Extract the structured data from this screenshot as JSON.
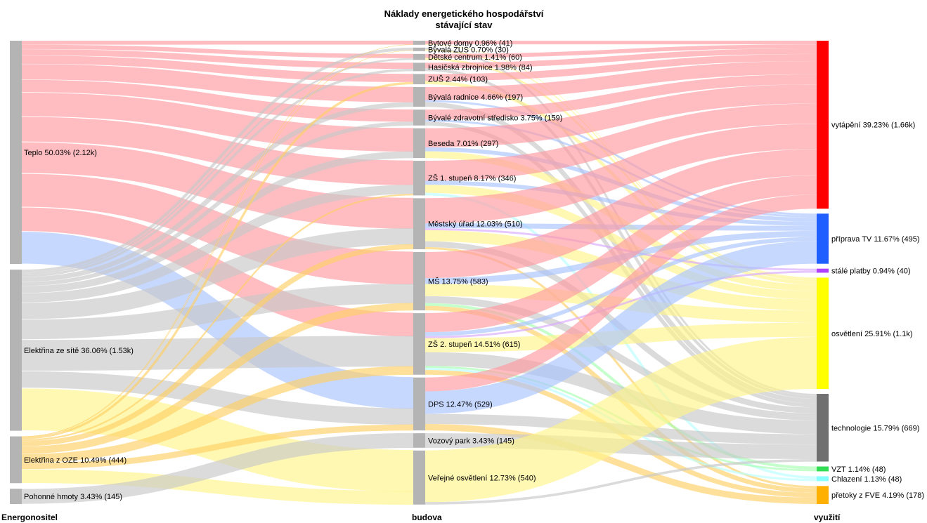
{
  "colors": {
    "teplo": "#ff9aa2",
    "site": "#c8c8c8",
    "tv": "#a9c3ff",
    "osvetleni": "#fff58a",
    "oze": "#ffcf66",
    "chlazeni": "#b8ffff",
    "vzt": "#a6ffb0",
    "stale": "#d8a8ff",
    "node_grey": "#b4b4b4",
    "vytapeni": "#ff0000",
    "priprava_tv": "#1f5fff",
    "stale_platby": "#b040ff",
    "osvetleni_node": "#ffff00",
    "technologie": "#707070",
    "vzt_node": "#33dd55",
    "chlazeni_node": "#88ffff",
    "pretoky": "#ffb000"
  },
  "chart_data": {
    "type": "sankey",
    "title": [
      "Náklady energetického hospodářství",
      "stávající stav"
    ],
    "columns": [
      "Energonositel",
      "budova",
      "využití"
    ],
    "nodes": [
      {
        "id": "teplo",
        "col": 0,
        "label": "Teplo 50.03% (2.12k)",
        "value": 2120
      },
      {
        "id": "elsit",
        "col": 0,
        "label": "Elektřina ze sítě 36.06% (1.53k)",
        "value": 1530
      },
      {
        "id": "eloze",
        "col": 0,
        "label": "Elektřina z OZE 10.49% (444)",
        "value": 444
      },
      {
        "id": "phm",
        "col": 0,
        "label": "Pohonné hmoty 3.43% (145)",
        "value": 145
      },
      {
        "id": "bd",
        "col": 1,
        "label": "Bytové domy 0.96% (41)",
        "value": 41
      },
      {
        "id": "bzus",
        "col": 1,
        "label": "Bývalá ZUŠ 0.70% (30)",
        "value": 30
      },
      {
        "id": "dc",
        "col": 1,
        "label": "Dětské centrum 1.41% (60)",
        "value": 60
      },
      {
        "id": "hz",
        "col": 1,
        "label": "Hasičská zbrojnice 1.98% (84)",
        "value": 84
      },
      {
        "id": "zus",
        "col": 1,
        "label": "ZUŠ 2.44% (103)",
        "value": 103
      },
      {
        "id": "br",
        "col": 1,
        "label": "Bývalá radnice 4.66% (197)",
        "value": 197
      },
      {
        "id": "bzs",
        "col": 1,
        "label": "Bývalé zdravotní středisko 3.75% (159)",
        "value": 159
      },
      {
        "id": "bes",
        "col": 1,
        "label": "Beseda 7.01% (297)",
        "value": 297
      },
      {
        "id": "zs1",
        "col": 1,
        "label": "ZŠ 1. stupeň 8.17% (346)",
        "value": 346
      },
      {
        "id": "mu",
        "col": 1,
        "label": "Městský úřad 12.03% (510)",
        "value": 510
      },
      {
        "id": "ms",
        "col": 1,
        "label": "MŠ 13.75% (583)",
        "value": 583
      },
      {
        "id": "zs2",
        "col": 1,
        "label": "ZŠ 2. stupeň 14.51% (615)",
        "value": 615
      },
      {
        "id": "dps",
        "col": 1,
        "label": "DPS 12.47% (529)",
        "value": 529
      },
      {
        "id": "vp",
        "col": 1,
        "label": "Vozový park 3.43% (145)",
        "value": 145
      },
      {
        "id": "vo",
        "col": 1,
        "label": "Veřejné osvětlení 12.73% (540)",
        "value": 540
      },
      {
        "id": "vyt",
        "col": 2,
        "label": "vytápění 39.23% (1.66k)",
        "value": 1660,
        "color": "vytapeni"
      },
      {
        "id": "ptv",
        "col": 2,
        "label": "příprava TV 11.67% (495)",
        "value": 495,
        "color": "priprava_tv"
      },
      {
        "id": "sp",
        "col": 2,
        "label": "stálé platby 0.94% (40)",
        "value": 40,
        "color": "stale_platby"
      },
      {
        "id": "osv",
        "col": 2,
        "label": "osvětlení 25.91% (1.1k)",
        "value": 1100,
        "color": "osvetleni_node"
      },
      {
        "id": "tech",
        "col": 2,
        "label": "technologie 15.79% (669)",
        "value": 669,
        "color": "technologie"
      },
      {
        "id": "vzt",
        "col": 2,
        "label": "VZT 1.14% (48)",
        "value": 48,
        "color": "vzt_node"
      },
      {
        "id": "chl",
        "col": 2,
        "label": "Chlazení 1.13% (48)",
        "value": 48,
        "color": "chlazeni_node"
      },
      {
        "id": "pfve",
        "col": 2,
        "label": "přetoky z FVE 4.19% (178)",
        "value": 178,
        "color": "pretoky"
      }
    ],
    "links": [
      {
        "s": "teplo",
        "t": "bd",
        "v": 38,
        "c": "teplo"
      },
      {
        "s": "teplo",
        "t": "dc",
        "v": 42,
        "c": "teplo"
      },
      {
        "s": "teplo",
        "t": "hz",
        "v": 60,
        "c": "teplo"
      },
      {
        "s": "teplo",
        "t": "zus",
        "v": 80,
        "c": "teplo"
      },
      {
        "s": "teplo",
        "t": "br",
        "v": 150,
        "c": "teplo"
      },
      {
        "s": "teplo",
        "t": "bzs",
        "v": 120,
        "c": "teplo"
      },
      {
        "s": "teplo",
        "t": "bes",
        "v": 230,
        "c": "teplo"
      },
      {
        "s": "teplo",
        "t": "zs1",
        "v": 240,
        "c": "teplo"
      },
      {
        "s": "teplo",
        "t": "mu",
        "v": 300,
        "c": "teplo"
      },
      {
        "s": "teplo",
        "t": "ms",
        "v": 320,
        "c": "teplo"
      },
      {
        "s": "teplo",
        "t": "zs2",
        "v": 230,
        "c": "teplo"
      },
      {
        "s": "teplo",
        "t": "dps",
        "v": 310,
        "c": "tv"
      },
      {
        "s": "elsit",
        "t": "bzus",
        "v": 28,
        "c": "site"
      },
      {
        "s": "elsit",
        "t": "dc",
        "v": 18,
        "c": "site"
      },
      {
        "s": "elsit",
        "t": "hz",
        "v": 24,
        "c": "site"
      },
      {
        "s": "elsit",
        "t": "br",
        "v": 47,
        "c": "site"
      },
      {
        "s": "elsit",
        "t": "bzs",
        "v": 39,
        "c": "site"
      },
      {
        "s": "elsit",
        "t": "bes",
        "v": 67,
        "c": "site"
      },
      {
        "s": "elsit",
        "t": "zs1",
        "v": 90,
        "c": "site"
      },
      {
        "s": "elsit",
        "t": "mu",
        "v": 160,
        "c": "site"
      },
      {
        "s": "elsit",
        "t": "ms",
        "v": 190,
        "c": "site"
      },
      {
        "s": "elsit",
        "t": "zs2",
        "v": 300,
        "c": "site"
      },
      {
        "s": "elsit",
        "t": "dps",
        "v": 160,
        "c": "site"
      },
      {
        "s": "elsit",
        "t": "vo",
        "v": 407,
        "c": "osvetleni"
      },
      {
        "s": "eloze",
        "t": "bd",
        "v": 3,
        "c": "oze"
      },
      {
        "s": "eloze",
        "t": "bzus",
        "v": 2,
        "c": "oze"
      },
      {
        "s": "eloze",
        "t": "zus",
        "v": 23,
        "c": "oze"
      },
      {
        "s": "eloze",
        "t": "bes",
        "v": 0,
        "c": "oze"
      },
      {
        "s": "eloze",
        "t": "zs1",
        "v": 16,
        "c": "oze"
      },
      {
        "s": "eloze",
        "t": "mu",
        "v": 50,
        "c": "oze"
      },
      {
        "s": "eloze",
        "t": "ms",
        "v": 73,
        "c": "oze"
      },
      {
        "s": "eloze",
        "t": "zs2",
        "v": 85,
        "c": "oze"
      },
      {
        "s": "eloze",
        "t": "dps",
        "v": 59,
        "c": "oze"
      },
      {
        "s": "eloze",
        "t": "vo",
        "v": 133,
        "c": "osvetleni"
      },
      {
        "s": "phm",
        "t": "vp",
        "v": 145,
        "c": "site"
      },
      {
        "s": "bd",
        "t": "vyt",
        "v": 36,
        "c": "teplo"
      },
      {
        "s": "bd",
        "t": "osv",
        "v": 5,
        "c": "osvetleni"
      },
      {
        "s": "bzus",
        "t": "tech",
        "v": 20,
        "c": "site"
      },
      {
        "s": "bzus",
        "t": "osv",
        "v": 10,
        "c": "osvetleni"
      },
      {
        "s": "dc",
        "t": "vyt",
        "v": 40,
        "c": "teplo"
      },
      {
        "s": "dc",
        "t": "osv",
        "v": 20,
        "c": "osvetleni"
      },
      {
        "s": "hz",
        "t": "vyt",
        "v": 55,
        "c": "teplo"
      },
      {
        "s": "hz",
        "t": "tech",
        "v": 29,
        "c": "site"
      },
      {
        "s": "zus",
        "t": "vyt",
        "v": 70,
        "c": "teplo"
      },
      {
        "s": "zus",
        "t": "osv",
        "v": 33,
        "c": "osvetleni"
      },
      {
        "s": "br",
        "t": "vyt",
        "v": 130,
        "c": "teplo"
      },
      {
        "s": "br",
        "t": "ptv",
        "v": 20,
        "c": "tv"
      },
      {
        "s": "br",
        "t": "tech",
        "v": 47,
        "c": "site"
      },
      {
        "s": "bzs",
        "t": "vyt",
        "v": 100,
        "c": "teplo"
      },
      {
        "s": "bzs",
        "t": "ptv",
        "v": 20,
        "c": "tv"
      },
      {
        "s": "bzs",
        "t": "tech",
        "v": 39,
        "c": "site"
      },
      {
        "s": "bes",
        "t": "vyt",
        "v": 190,
        "c": "teplo"
      },
      {
        "s": "bes",
        "t": "ptv",
        "v": 40,
        "c": "tv"
      },
      {
        "s": "bes",
        "t": "osv",
        "v": 67,
        "c": "osvetleni"
      },
      {
        "s": "zs1",
        "t": "vyt",
        "v": 200,
        "c": "teplo"
      },
      {
        "s": "zs1",
        "t": "ptv",
        "v": 40,
        "c": "tv"
      },
      {
        "s": "zs1",
        "t": "osv",
        "v": 80,
        "c": "osvetleni"
      },
      {
        "s": "zs1",
        "t": "chl",
        "v": 26,
        "c": "chlazeni"
      },
      {
        "s": "mu",
        "t": "vyt",
        "v": 250,
        "c": "teplo"
      },
      {
        "s": "mu",
        "t": "ptv",
        "v": 50,
        "c": "tv"
      },
      {
        "s": "mu",
        "t": "sp",
        "v": 20,
        "c": "stale"
      },
      {
        "s": "mu",
        "t": "osv",
        "v": 110,
        "c": "osvetleni"
      },
      {
        "s": "mu",
        "t": "tech",
        "v": 58,
        "c": "site"
      },
      {
        "s": "mu",
        "t": "pfve",
        "v": 22,
        "c": "oze"
      },
      {
        "s": "ms",
        "t": "vyt",
        "v": 260,
        "c": "teplo"
      },
      {
        "s": "ms",
        "t": "ptv",
        "v": 60,
        "c": "tv"
      },
      {
        "s": "ms",
        "t": "osv",
        "v": 120,
        "c": "osvetleni"
      },
      {
        "s": "ms",
        "t": "tech",
        "v": 70,
        "c": "site"
      },
      {
        "s": "ms",
        "t": "vzt",
        "v": 28,
        "c": "vzt"
      },
      {
        "s": "ms",
        "t": "pfve",
        "v": 45,
        "c": "oze"
      },
      {
        "s": "zs2",
        "t": "vyt",
        "v": 190,
        "c": "teplo"
      },
      {
        "s": "zs2",
        "t": "ptv",
        "v": 40,
        "c": "tv"
      },
      {
        "s": "zs2",
        "t": "sp",
        "v": 20,
        "c": "stale"
      },
      {
        "s": "zs2",
        "t": "osv",
        "v": 140,
        "c": "osvetleni"
      },
      {
        "s": "zs2",
        "t": "tech",
        "v": 136,
        "c": "site"
      },
      {
        "s": "zs2",
        "t": "vzt",
        "v": 20,
        "c": "vzt"
      },
      {
        "s": "zs2",
        "t": "chl",
        "v": 22,
        "c": "chlazeni"
      },
      {
        "s": "zs2",
        "t": "pfve",
        "v": 47,
        "c": "oze"
      },
      {
        "s": "dps",
        "t": "vyt",
        "v": 139,
        "c": "teplo"
      },
      {
        "s": "dps",
        "t": "ptv",
        "v": 225,
        "c": "tv"
      },
      {
        "s": "dps",
        "t": "tech",
        "v": 101,
        "c": "site"
      },
      {
        "s": "dps",
        "t": "pfve",
        "v": 64,
        "c": "oze"
      },
      {
        "s": "vp",
        "t": "tech",
        "v": 145,
        "c": "site"
      },
      {
        "s": "vo",
        "t": "osv",
        "v": 515,
        "c": "osvetleni"
      },
      {
        "s": "vo",
        "t": "tech",
        "v": 25,
        "c": "site"
      }
    ]
  }
}
